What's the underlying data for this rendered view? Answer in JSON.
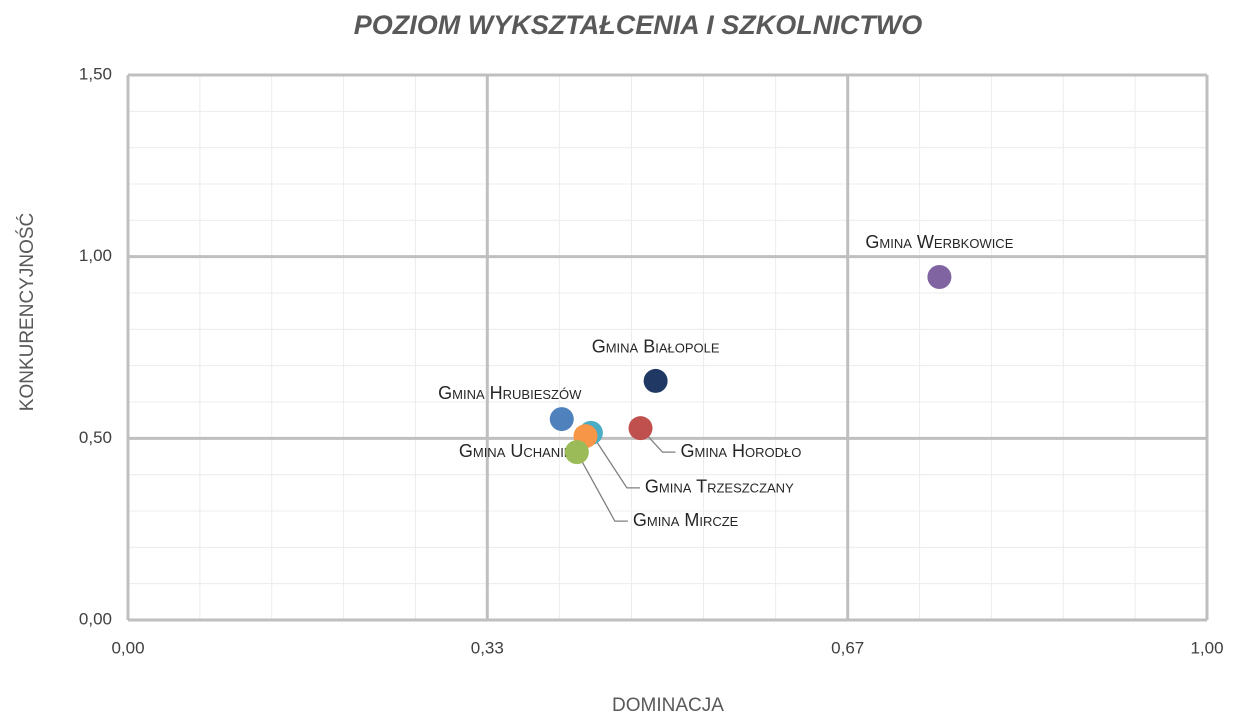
{
  "chart_data": {
    "type": "scatter",
    "title": "POZIOM WYKSZTAŁCENIA I SZKOLNICTWO",
    "x_label": "DOMINACJA",
    "y_label": "KONKURENCYJNOŚĆ",
    "xlim": [
      0,
      1
    ],
    "ylim": [
      0,
      1.5
    ],
    "xticks": [
      {
        "value": 0,
        "label": "0,00"
      },
      {
        "value": 0.333,
        "label": "0,33"
      },
      {
        "value": 0.667,
        "label": "0,67"
      },
      {
        "value": 1,
        "label": "1,00"
      }
    ],
    "yticks": [
      {
        "value": 0,
        "label": "0,00"
      },
      {
        "value": 0.5,
        "label": "0,50"
      },
      {
        "value": 1,
        "label": "1,00"
      },
      {
        "value": 1.5,
        "label": "1,50"
      }
    ],
    "grid": true,
    "series": [
      {
        "name": "Gmina Werbkowice",
        "color": "#8064a2",
        "x": [
          0.752
        ],
        "values": [
          0.944
        ]
      },
      {
        "name": "Gmina Białopole",
        "color": "#1f3864",
        "x": [
          0.489
        ],
        "values": [
          0.658
        ]
      },
      {
        "name": "Gmina Hrubieszów",
        "color": "#4f81bd",
        "x": [
          0.402
        ],
        "values": [
          0.553
        ]
      },
      {
        "name": "Gmina Horodło",
        "color": "#c0504d",
        "x": [
          0.475
        ],
        "values": [
          0.528
        ]
      },
      {
        "name": "Gmina Trzeszczany",
        "color": "#4bacc6",
        "x": [
          0.429
        ],
        "values": [
          0.515
        ]
      },
      {
        "name": "Gmina Uchanie",
        "color": "#f79646",
        "x": [
          0.424
        ],
        "values": [
          0.506
        ]
      },
      {
        "name": "Gmina Mircze",
        "color": "#9bbb59",
        "x": [
          0.416
        ],
        "values": [
          0.462
        ]
      }
    ]
  }
}
